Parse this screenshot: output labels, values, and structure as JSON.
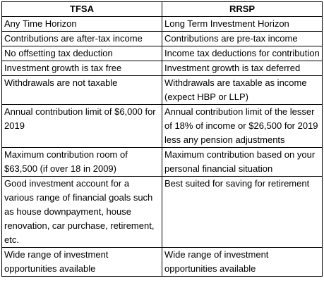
{
  "table": {
    "headers": [
      "TFSA",
      "RRSP"
    ],
    "rows": [
      [
        "Any Time Horizon",
        "Long Term Investment Horizon"
      ],
      [
        "Contributions are after-tax income",
        "Contributions are pre-tax income"
      ],
      [
        "No offsetting  tax deduction",
        "Income tax deductions for contribution"
      ],
      [
        "Investment growth is tax free",
        "Investment growth is tax deferred"
      ],
      [
        "Withdrawals are not taxable",
        "Withdrawals are taxable as income (expect HBP or LLP)"
      ],
      [
        "Annual contribution limit of $6,000 for 2019",
        "Annual contribution limit of the lesser of 18% of income or $26,500 for 2019 less any pension adjustments"
      ],
      [
        "Maximum contribution room of $63,500 (if over 18 in 2009)",
        "Maximum contribution based on your personal financial situation"
      ],
      [
        "Good investment account for a various range of financial goals such as house downpayment, house renovation, car purchase, retirement, etc.",
        "Best suited for  saving for retirement"
      ],
      [
        "Wide range of investment opportunities available",
        "Wide range of investment opportunities available"
      ]
    ]
  }
}
